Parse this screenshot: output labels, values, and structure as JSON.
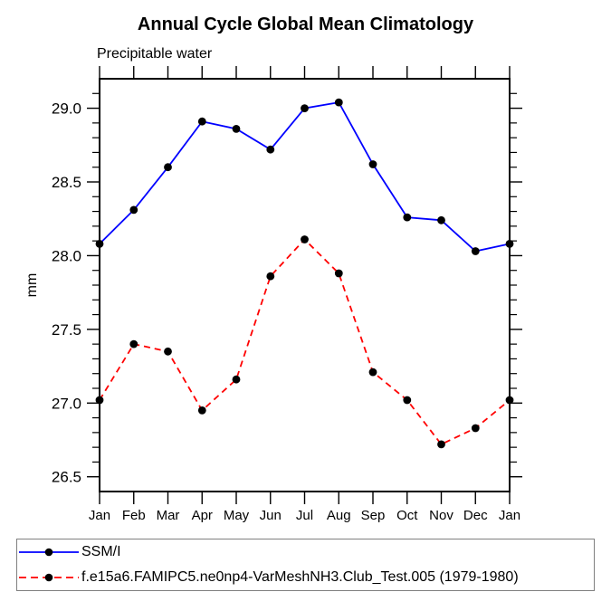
{
  "title": "Annual Cycle Global Mean Climatology",
  "subtitle": "Precipitable water",
  "ylabel": "mm",
  "legend": {
    "position": "bottom",
    "entries": [
      {
        "label": "SSM/I",
        "color": "#0000ff",
        "line_style": "solid",
        "marker": "filled-circle",
        "marker_color": "#000000"
      },
      {
        "label": "f.e15a6.FAMIPC5.ne0np4-VarMeshNH3.Club_Test.005 (1979-1980)",
        "color": "#ff0000",
        "line_style": "dashed",
        "marker": "filled-circle",
        "marker_color": "#000000"
      }
    ]
  },
  "chart_data": {
    "type": "line",
    "title": "Annual Cycle Global Mean Climatology",
    "subtitle": "Precipitable water",
    "xlabel": "",
    "ylabel": "mm",
    "categories": [
      "Jan",
      "Feb",
      "Mar",
      "Apr",
      "May",
      "Jun",
      "Jul",
      "Aug",
      "Sep",
      "Oct",
      "Nov",
      "Dec",
      "Jan"
    ],
    "series": [
      {
        "name": "SSM/I",
        "color": "#0000ff",
        "line_style": "solid",
        "marker": "filled-circle",
        "marker_color": "#000000",
        "values": [
          28.08,
          28.31,
          28.6,
          28.91,
          28.86,
          28.72,
          29.0,
          29.04,
          28.62,
          28.26,
          28.24,
          28.03,
          28.08
        ]
      },
      {
        "name": "f.e15a6.FAMIPC5.ne0np4-VarMeshNH3.Club_Test.005 (1979-1980)",
        "color": "#ff0000",
        "line_style": "dashed",
        "marker": "filled-circle",
        "marker_color": "#000000",
        "values": [
          27.02,
          27.4,
          27.35,
          26.95,
          27.16,
          27.86,
          28.11,
          27.88,
          27.21,
          27.02,
          26.72,
          26.83,
          27.02
        ]
      }
    ],
    "ylim": [
      26.4,
      29.2
    ],
    "yticks": [
      26.5,
      27.0,
      27.5,
      28.0,
      28.5,
      29.0
    ],
    "ytick_minor_step": 0.1,
    "grid": false,
    "tick_direction": "out",
    "frame": "box",
    "legend_position": "bottom"
  }
}
